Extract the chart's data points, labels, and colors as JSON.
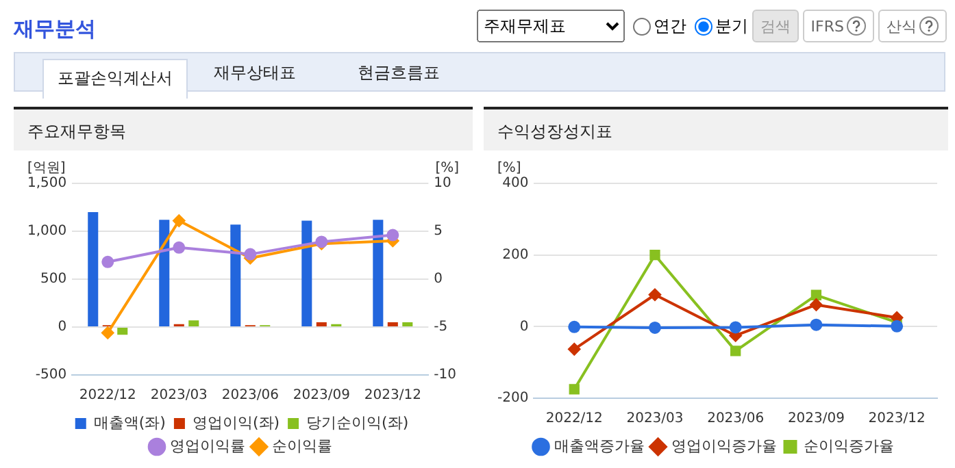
{
  "chart_data": [
    {
      "type": "bar",
      "title": "주요재무항목",
      "ylabel": "[억원]",
      "y2label": "[%]",
      "annotations": [
        "재무분석",
        "주재무제표",
        "연간",
        "분기",
        "검색",
        "IFRS",
        "산식",
        "포괄손익계산서",
        "재무상태표",
        "현금흐름표"
      ],
      "categories": [
        "2022/12",
        "2023/03",
        "2023/06",
        "2023/09",
        "2023/12"
      ],
      "series": [
        {
          "name": "매출액(좌)",
          "color": "#2266dd",
          "values": [
            1200,
            1120,
            1070,
            1110,
            1120
          ]
        },
        {
          "name": "영업이익(좌)",
          "color": "#cc3300",
          "values": [
            20,
            30,
            20,
            50,
            50
          ]
        },
        {
          "name": "당기순이익(좌)",
          "color": "#88c020",
          "values": [
            -80,
            70,
            20,
            30,
            50
          ]
        },
        {
          "name": "영업이익률",
          "type": "line",
          "axis": "y2",
          "marker": "circle",
          "color": "#aa80dd",
          "values": [
            1.8,
            3.3,
            2.6,
            3.9,
            4.6
          ]
        },
        {
          "name": "순이익률",
          "type": "line",
          "axis": "y2",
          "marker": "diamond",
          "color": "#ff9900",
          "values": [
            -5.6,
            6.1,
            2.2,
            3.7,
            4.0
          ]
        }
      ],
      "ylim": [
        -500,
        1500
      ],
      "yticks": [
        -500,
        0,
        500,
        {
          "value": 1000,
          "label": "1,000"
        },
        {
          "value": 1500,
          "label": "1,500"
        }
      ],
      "y2lim": [
        -10,
        10
      ],
      "y2ticks": [
        -10,
        -5,
        0,
        5,
        10
      ],
      "grid": "y",
      "legend": "bottom"
    },
    {
      "type": "line",
      "title": "수익성장성지표",
      "ylabel": "[%]",
      "categories": [
        "2022/12",
        "2023/03",
        "2023/06",
        "2023/09",
        "2023/12"
      ],
      "series": [
        {
          "name": "매출액증가율",
          "marker": "circle",
          "color": "#2b6fe0",
          "values": [
            -1,
            -3,
            -2,
            5,
            1
          ]
        },
        {
          "name": "영업이익증가율",
          "marker": "diamond",
          "color": "#cc3300",
          "values": [
            -63,
            89,
            -25,
            61,
            25
          ]
        },
        {
          "name": "순이익증가율",
          "marker": "square",
          "color": "#88c020",
          "values": [
            -175,
            200,
            -68,
            88,
            12
          ]
        }
      ],
      "ylim": [
        -200,
        400
      ],
      "yticks": [
        -200,
        0,
        200,
        400
      ],
      "grid": "y",
      "legend": "bottom"
    }
  ]
}
